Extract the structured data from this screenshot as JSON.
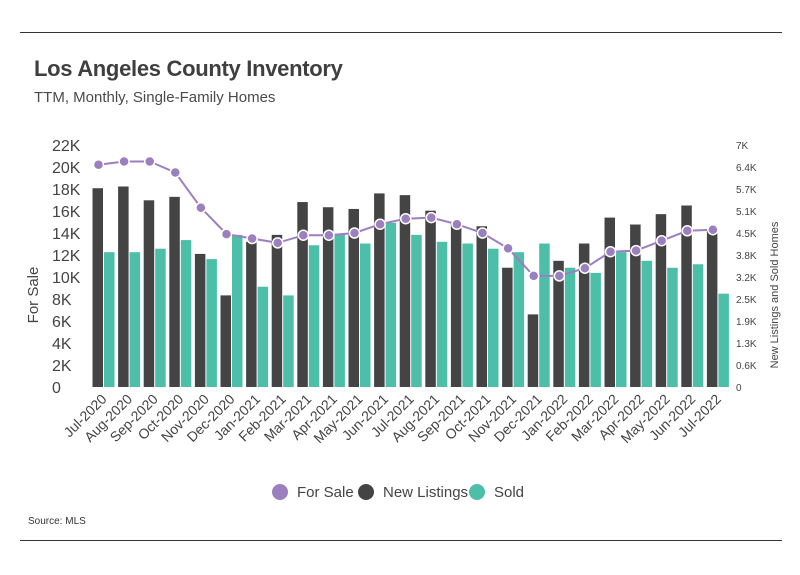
{
  "title": "Los Angeles County Inventory",
  "subtitle": "TTM, Monthly, Single-Family Homes",
  "source": "Source:  MLS",
  "colors": {
    "for_sale": "#9c7fbf",
    "new_listings": "#444444",
    "sold": "#4dbfa8",
    "text": "#444444"
  },
  "chart_data": {
    "type": "bar",
    "title": "Los Angeles County Inventory",
    "categories": [
      "Jul-2020",
      "Aug-2020",
      "Sep-2020",
      "Oct-2020",
      "Nov-2020",
      "Dec-2020",
      "Jan-2021",
      "Feb-2021",
      "Mar-2021",
      "Apr-2021",
      "May-2021",
      "Jun-2021",
      "Jul-2021",
      "Aug-2021",
      "Sep-2021",
      "Oct-2021",
      "Nov-2021",
      "Dec-2021",
      "Jan-2022",
      "Feb-2022",
      "Mar-2022",
      "Apr-2022",
      "May-2022",
      "Jun-2022",
      "Jul-2022"
    ],
    "ylabel_left": "For Sale",
    "ylabel_right": "New Listings and Sold Homes",
    "yticks_left": [
      "0",
      "2K",
      "4K",
      "6K",
      "8K",
      "10K",
      "12K",
      "14K",
      "16K",
      "18K",
      "20K",
      "22K"
    ],
    "yticks_right": [
      "0",
      "0.6K",
      "1.3K",
      "1.9K",
      "2.5K",
      "3.2K",
      "3.8K",
      "4.5K",
      "5.1K",
      "5.7K",
      "6.4K",
      "7K"
    ],
    "ylim_left": [
      0,
      22000
    ],
    "ylim_right": [
      0,
      7000
    ],
    "series": [
      {
        "name": "New Listings",
        "type": "bar",
        "axis": "right",
        "values": [
          5750,
          5800,
          5400,
          5500,
          3850,
          2650,
          4200,
          4400,
          5350,
          5200,
          5150,
          5600,
          5550,
          5100,
          4750,
          4650,
          3450,
          2100,
          3650,
          4150,
          4900,
          4700,
          5000,
          5250,
          4550
        ]
      },
      {
        "name": "Sold",
        "type": "bar",
        "axis": "right",
        "values": [
          3900,
          3900,
          4000,
          4250,
          3700,
          4400,
          2900,
          2650,
          4100,
          4400,
          4150,
          4750,
          4400,
          4200,
          4150,
          4000,
          3900,
          4150,
          3450,
          3300,
          3900,
          3650,
          3450,
          3550,
          2700
        ]
      },
      {
        "name": "For Sale",
        "type": "line",
        "axis": "left",
        "values": [
          20200,
          20500,
          20500,
          19500,
          16300,
          13900,
          13500,
          13100,
          13800,
          13800,
          14000,
          14800,
          15300,
          15400,
          14800,
          14000,
          12600,
          10100,
          10100,
          10800,
          12300,
          12400,
          13300,
          14200,
          14300
        ]
      }
    ],
    "legend": [
      "For Sale",
      "New Listings",
      "Sold"
    ],
    "legend_position": "bottom"
  }
}
